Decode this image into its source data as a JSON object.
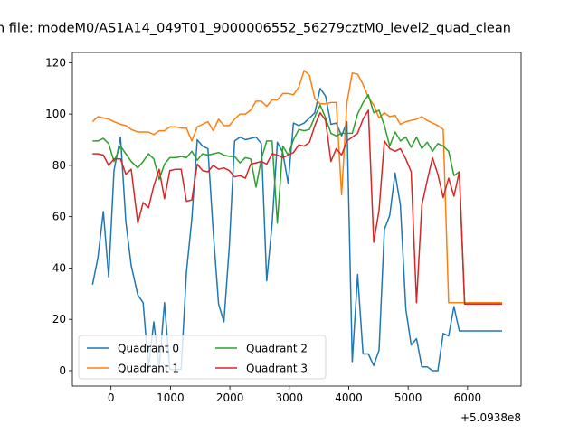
{
  "chart_data": {
    "type": "line",
    "title": "n file: modeM0/AS1A14_049T01_9000006552_56279cztM0_level2_quad_clean",
    "x_offset_label": "+5.0938e8",
    "xlim": [
      -650,
      6900
    ],
    "ylim": [
      -6,
      124
    ],
    "x_ticks": [
      0,
      1000,
      2000,
      3000,
      4000,
      5000,
      6000
    ],
    "x_tick_labels": [
      "0",
      "1000",
      "2000",
      "3000",
      "4000",
      "5000",
      "6000"
    ],
    "y_ticks": [
      0,
      20,
      40,
      60,
      80,
      100,
      120
    ],
    "y_tick_labels": [
      "0",
      "20",
      "40",
      "60",
      "80",
      "100",
      "120"
    ],
    "legend_position": "lower-left",
    "grid": false,
    "x": [
      -310,
      -220,
      -130,
      -40,
      50,
      160,
      250,
      340,
      450,
      540,
      630,
      720,
      810,
      900,
      990,
      1090,
      1180,
      1270,
      1360,
      1450,
      1540,
      1630,
      1720,
      1810,
      1900,
      1990,
      2080,
      2170,
      2260,
      2350,
      2440,
      2530,
      2620,
      2710,
      2800,
      2890,
      2980,
      3070,
      3160,
      3250,
      3340,
      3430,
      3520,
      3610,
      3700,
      3790,
      3880,
      3970,
      4060,
      4150,
      4240,
      4330,
      4420,
      4510,
      4600,
      4690,
      4780,
      4870,
      4960,
      5050,
      5140,
      5230,
      5320,
      5410,
      5500,
      5590,
      5680,
      5770,
      5860,
      5950,
      6040,
      6130,
      6220,
      6310,
      6400,
      6490,
      6580
    ],
    "series": [
      {
        "name": "Quadrant 0",
        "color": "#1f77b4",
        "values": [
          33.5,
          44,
          62,
          36.5,
          78,
          91,
          58,
          41,
          29.5,
          26.5,
          1,
          19,
          1,
          26.5,
          0.5,
          0.5,
          0.5,
          38.5,
          59,
          90,
          87.5,
          86.5,
          54,
          26,
          19,
          48,
          89.5,
          91,
          90,
          90.5,
          91,
          88.5,
          35,
          57,
          89,
          85,
          73,
          96.5,
          95.5,
          96.5,
          98.5,
          100.5,
          110,
          107,
          96,
          96.5,
          91.5,
          97,
          3.5,
          37.5,
          6.5,
          6.5,
          2,
          8,
          55,
          60.5,
          77,
          64.5,
          24,
          10,
          12.5,
          1.5,
          1.5,
          0,
          0,
          14.5,
          13.5,
          25,
          15.5,
          15.5,
          15.5,
          15.5,
          15.5,
          15.5,
          15.5,
          15.5,
          15.5
        ]
      },
      {
        "name": "Quadrant 1",
        "color": "#ff7f0e",
        "values": [
          97,
          99,
          98.5,
          98,
          97,
          96,
          95.5,
          94,
          93,
          93,
          93,
          92,
          93.5,
          93.5,
          95,
          95,
          94.5,
          94.5,
          89.5,
          95,
          96,
          97,
          93.5,
          98,
          95.5,
          95.5,
          98,
          100,
          100,
          101.5,
          105,
          105,
          103,
          105.5,
          105.5,
          108,
          108,
          107.5,
          110.5,
          117,
          115,
          106,
          104,
          104,
          104.5,
          104.5,
          68.5,
          104.5,
          116,
          115.5,
          111.5,
          106.5,
          103.5,
          98.5,
          100.5,
          99,
          99.5,
          96,
          97,
          97.5,
          98,
          99,
          97.5,
          96.5,
          95.5,
          94,
          26.5,
          26.5,
          26.5,
          26.5,
          26.5,
          26.5,
          26.5,
          26.5,
          26.5,
          26.5,
          26.5
        ]
      },
      {
        "name": "Quadrant 2",
        "color": "#2ca02c",
        "values": [
          89.5,
          89.5,
          90.5,
          88.5,
          81.5,
          87.5,
          84.5,
          81.5,
          79,
          81.5,
          84.5,
          82.5,
          74.5,
          80.5,
          83,
          83,
          83.5,
          83,
          85.5,
          82,
          84.5,
          84,
          84.5,
          85,
          84,
          83.5,
          83.5,
          81,
          83,
          82.5,
          71.5,
          82.5,
          89.5,
          89.5,
          57.5,
          87.5,
          84,
          90,
          94,
          93.5,
          94,
          99,
          103.5,
          98.5,
          92.5,
          91.5,
          92.5,
          92.5,
          92.5,
          100,
          104.5,
          107.5,
          100.5,
          101.5,
          95.5,
          87.5,
          93,
          89.5,
          91,
          87,
          91,
          86.5,
          89,
          85.5,
          88.5,
          87.5,
          85.5,
          76,
          77.5,
          26,
          26,
          26,
          26,
          26,
          26,
          26,
          26
        ]
      },
      {
        "name": "Quadrant 3",
        "color": "#d62728",
        "values": [
          84.5,
          84.5,
          84,
          80,
          82.5,
          82.5,
          76.5,
          78.5,
          57.5,
          65.5,
          63.5,
          72,
          78.5,
          67,
          78,
          78.5,
          78.5,
          66,
          66.5,
          80.5,
          78,
          77.5,
          80,
          78.5,
          79,
          78,
          75.5,
          76,
          75,
          80.5,
          81,
          81.5,
          80.5,
          84.5,
          84,
          83,
          84,
          85,
          88,
          87.5,
          89,
          95.5,
          100.5,
          97.5,
          81.5,
          86.5,
          84,
          89.5,
          91,
          92.5,
          98,
          101.5,
          50,
          62.5,
          89.5,
          86.5,
          85.5,
          86.5,
          82.5,
          77.5,
          26.5,
          64.5,
          74,
          83,
          76.5,
          67.5,
          75,
          68,
          77.5,
          26,
          26,
          26,
          26,
          26,
          26,
          26,
          26
        ]
      }
    ]
  }
}
